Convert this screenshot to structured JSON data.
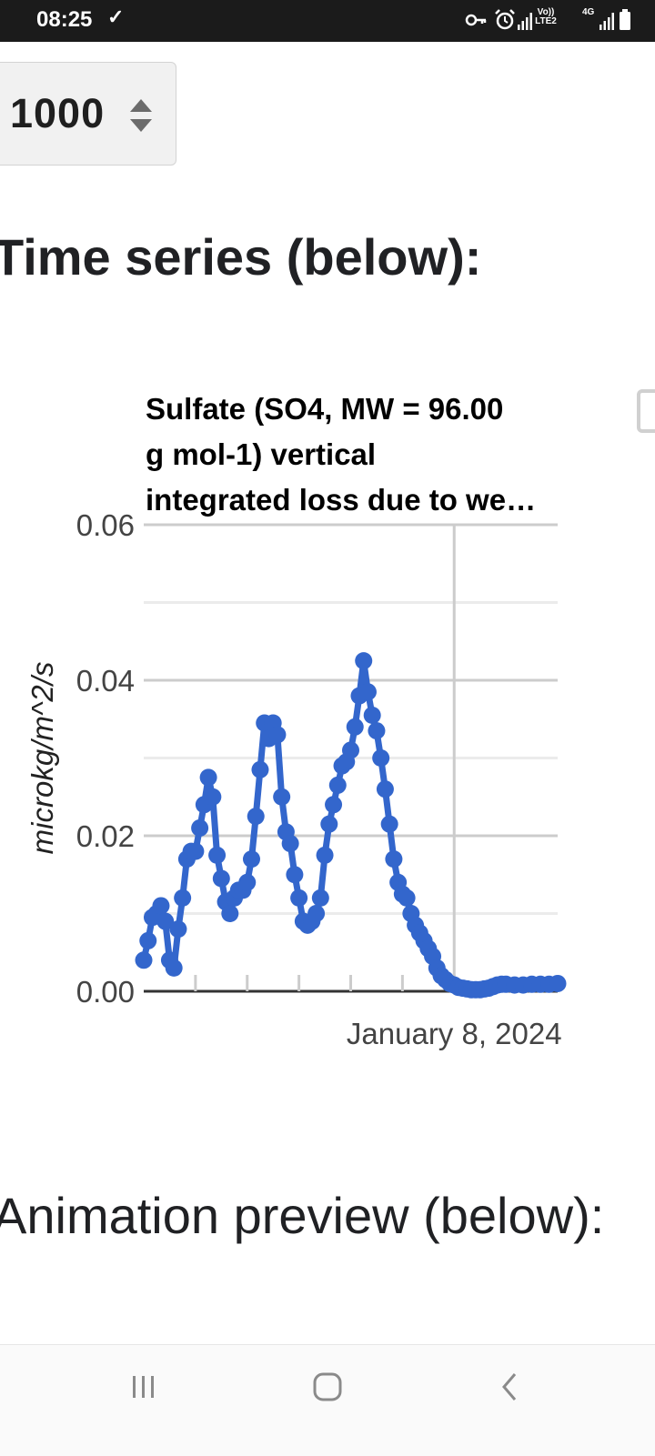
{
  "status_bar": {
    "time": "08:25",
    "check_glyph": "✓",
    "volte_label": "Vo)) LTE2",
    "net_label": "4G",
    "icons": [
      "key-icon",
      "alarm-icon",
      "signal-icon",
      "volte-icon",
      "4g-icon",
      "signal-icon",
      "battery-icon"
    ]
  },
  "number_input": {
    "value": "1000"
  },
  "headings": {
    "time_series": "Time series (below):",
    "animation_preview": "Animation preview (below):"
  },
  "chart_data": {
    "type": "line",
    "title_lines": [
      "Sulfate (SO4, MW = 96.00",
      "g mol-1) vertical",
      "integrated loss due to we…"
    ],
    "ylabel": "microkg/m^2/s",
    "xlabel": "",
    "ylim": [
      0,
      0.06
    ],
    "yticks": [
      "0.06",
      "0.04",
      "0.02",
      "0.00"
    ],
    "ytick_values": [
      0.06,
      0.04,
      0.02,
      0.0
    ],
    "minor_gridlines": [
      0.01,
      0.03,
      0.05
    ],
    "xlim": [
      "2024-01-02",
      "2024-01-10"
    ],
    "xtick_label": "January 8, 2024",
    "xtick_date": "2024-01-08",
    "minor_xticks": [
      "2024-01-03",
      "2024-01-04",
      "2024-01-05",
      "2024-01-06",
      "2024-01-07",
      "2024-01-08"
    ],
    "series_color": "#3366cc",
    "grid": true,
    "series": [
      {
        "x": [
          "2024-01-02 00:00",
          "2024-01-02 02:00",
          "2024-01-02 04:00",
          "2024-01-02 06:00",
          "2024-01-02 08:00",
          "2024-01-02 10:00",
          "2024-01-02 12:00",
          "2024-01-02 14:00",
          "2024-01-02 16:00",
          "2024-01-02 18:00",
          "2024-01-02 20:00",
          "2024-01-02 22:00",
          "2024-01-03 00:00",
          "2024-01-03 02:00",
          "2024-01-03 04:00",
          "2024-01-03 06:00",
          "2024-01-03 08:00",
          "2024-01-03 10:00",
          "2024-01-03 12:00",
          "2024-01-03 14:00",
          "2024-01-03 16:00",
          "2024-01-03 18:00",
          "2024-01-03 20:00",
          "2024-01-03 22:00",
          "2024-01-04 00:00",
          "2024-01-04 02:00",
          "2024-01-04 04:00",
          "2024-01-04 06:00",
          "2024-01-04 08:00",
          "2024-01-04 10:00",
          "2024-01-04 12:00",
          "2024-01-04 14:00",
          "2024-01-04 16:00",
          "2024-01-04 18:00",
          "2024-01-04 20:00",
          "2024-01-04 22:00",
          "2024-01-05 00:00",
          "2024-01-05 02:00",
          "2024-01-05 04:00",
          "2024-01-05 06:00",
          "2024-01-05 08:00",
          "2024-01-05 10:00",
          "2024-01-05 12:00",
          "2024-01-05 14:00",
          "2024-01-05 16:00",
          "2024-01-05 18:00",
          "2024-01-05 20:00",
          "2024-01-05 22:00",
          "2024-01-06 00:00",
          "2024-01-06 02:00",
          "2024-01-06 04:00",
          "2024-01-06 06:00",
          "2024-01-06 08:00",
          "2024-01-06 10:00",
          "2024-01-06 12:00",
          "2024-01-06 14:00",
          "2024-01-06 16:00",
          "2024-01-06 18:00",
          "2024-01-06 20:00",
          "2024-01-06 22:00",
          "2024-01-07 00:00",
          "2024-01-07 02:00",
          "2024-01-07 04:00",
          "2024-01-07 06:00",
          "2024-01-07 08:00",
          "2024-01-07 10:00",
          "2024-01-07 12:00",
          "2024-01-07 14:00",
          "2024-01-07 16:00",
          "2024-01-07 18:00",
          "2024-01-07 20:00",
          "2024-01-07 22:00",
          "2024-01-08 00:00",
          "2024-01-08 02:00",
          "2024-01-08 04:00",
          "2024-01-08 06:00",
          "2024-01-08 08:00",
          "2024-01-08 10:00",
          "2024-01-08 12:00",
          "2024-01-08 14:00",
          "2024-01-08 16:00",
          "2024-01-08 18:00",
          "2024-01-08 20:00",
          "2024-01-08 22:00",
          "2024-01-09 00:00",
          "2024-01-09 04:00",
          "2024-01-09 08:00",
          "2024-01-09 12:00",
          "2024-01-09 16:00",
          "2024-01-09 20:00",
          "2024-01-10 00:00"
        ],
        "y": [
          0.004,
          0.0065,
          0.0095,
          0.01,
          0.011,
          0.009,
          0.004,
          0.003,
          0.008,
          0.012,
          0.017,
          0.018,
          0.018,
          0.021,
          0.024,
          0.0275,
          0.025,
          0.0175,
          0.0145,
          0.0115,
          0.01,
          0.012,
          0.013,
          0.013,
          0.014,
          0.017,
          0.0225,
          0.0285,
          0.0345,
          0.0325,
          0.0345,
          0.033,
          0.025,
          0.0205,
          0.019,
          0.015,
          0.012,
          0.009,
          0.0085,
          0.009,
          0.01,
          0.012,
          0.0175,
          0.0215,
          0.024,
          0.0265,
          0.029,
          0.0295,
          0.031,
          0.034,
          0.038,
          0.0425,
          0.0385,
          0.0355,
          0.0335,
          0.03,
          0.026,
          0.0215,
          0.017,
          0.014,
          0.0125,
          0.012,
          0.01,
          0.0085,
          0.0075,
          0.0065,
          0.0055,
          0.0045,
          0.003,
          0.002,
          0.0015,
          0.001,
          0.0008,
          0.0005,
          0.0004,
          0.0003,
          0.0002,
          0.0002,
          0.0002,
          0.0003,
          0.0004,
          0.0006,
          0.0008,
          0.0009,
          0.0009,
          0.0008,
          0.0008,
          0.0009,
          0.0009,
          0.0009,
          0.001
        ]
      }
    ]
  }
}
